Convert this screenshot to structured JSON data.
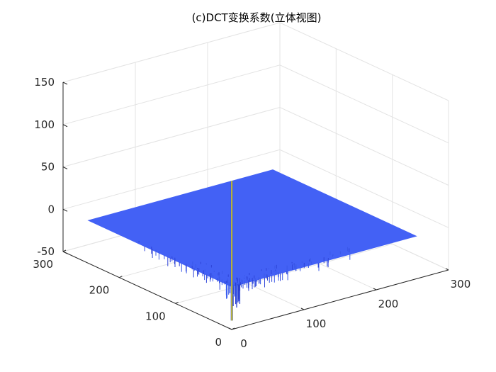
{
  "chart_data": {
    "type": "surface",
    "title": "(c)DCT变换系数(立体视图)",
    "surface_color": "#4361f5",
    "spike_color": "#f2e400",
    "grid": true,
    "zlim": [
      -50,
      150
    ],
    "xlim": [
      0,
      300
    ],
    "ylim": [
      0,
      300
    ],
    "z_ticks": [
      {
        "value": 150,
        "label": "150"
      },
      {
        "value": 100,
        "label": "100"
      },
      {
        "value": 50,
        "label": "50"
      },
      {
        "value": 0,
        "label": "0"
      },
      {
        "value": -50,
        "label": "-50"
      }
    ],
    "x_ticks": [
      {
        "value": 0,
        "label": "0"
      },
      {
        "value": 100,
        "label": "100"
      },
      {
        "value": 200,
        "label": "200"
      },
      {
        "value": 300,
        "label": "300"
      }
    ],
    "y_ticks": [
      {
        "value": 0,
        "label": "0"
      },
      {
        "value": 100,
        "label": "100"
      },
      {
        "value": 200,
        "label": "200"
      },
      {
        "value": 300,
        "label": "300"
      }
    ],
    "surface_extent": {
      "x": [
        1,
        256
      ],
      "y": [
        1,
        256
      ]
    },
    "surface_base_z": 0,
    "peak": {
      "x": 1,
      "y": 1,
      "z": 125,
      "min_z": -40
    }
  }
}
